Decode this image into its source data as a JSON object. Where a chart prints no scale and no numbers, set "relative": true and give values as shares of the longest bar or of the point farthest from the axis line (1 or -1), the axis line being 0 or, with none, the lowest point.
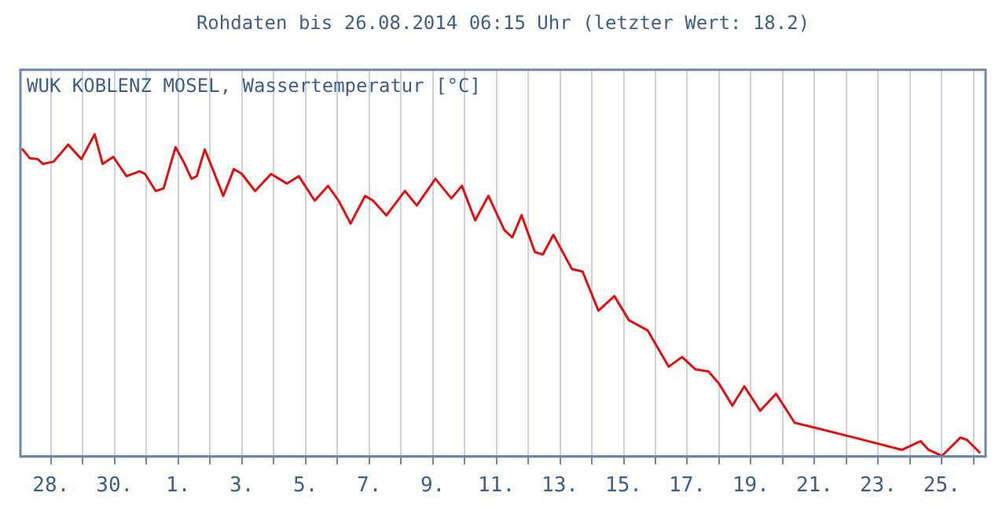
{
  "chart_data": {
    "type": "line",
    "title": "Rohdaten bis 26.08.2014 06:15 Uhr (letzter Wert: 18.2)",
    "subtitle": "WUK KOBLENZ MOSEL, Wassertemperatur [°C]",
    "relative": true,
    "grid": "x",
    "legend": false,
    "marker": "none",
    "line_style": "solid",
    "xlim": [
      "2014-07-27T01:00",
      "2014-08-26T09:00"
    ],
    "xticks": [
      {
        "value": "2014-07-28",
        "label": "28."
      },
      {
        "value": "2014-07-29",
        "label": null
      },
      {
        "value": "2014-07-30",
        "label": "30."
      },
      {
        "value": "2014-07-31",
        "label": null
      },
      {
        "value": "2014-08-01",
        "label": "1."
      },
      {
        "value": "2014-08-02",
        "label": null
      },
      {
        "value": "2014-08-03",
        "label": "3."
      },
      {
        "value": "2014-08-04",
        "label": null
      },
      {
        "value": "2014-08-05",
        "label": "5."
      },
      {
        "value": "2014-08-06",
        "label": null
      },
      {
        "value": "2014-08-07",
        "label": "7."
      },
      {
        "value": "2014-08-08",
        "label": null
      },
      {
        "value": "2014-08-09",
        "label": "9."
      },
      {
        "value": "2014-08-10",
        "label": null
      },
      {
        "value": "2014-08-11",
        "label": "11."
      },
      {
        "value": "2014-08-12",
        "label": null
      },
      {
        "value": "2014-08-13",
        "label": "13."
      },
      {
        "value": "2014-08-14",
        "label": null
      },
      {
        "value": "2014-08-15",
        "label": "15."
      },
      {
        "value": "2014-08-16",
        "label": null
      },
      {
        "value": "2014-08-17",
        "label": "17."
      },
      {
        "value": "2014-08-18",
        "label": null
      },
      {
        "value": "2014-08-19",
        "label": "19."
      },
      {
        "value": "2014-08-20",
        "label": null
      },
      {
        "value": "2014-08-21",
        "label": "21."
      },
      {
        "value": "2014-08-22",
        "label": null
      },
      {
        "value": "2014-08-23",
        "label": "23."
      },
      {
        "value": "2014-08-24",
        "label": null
      },
      {
        "value": "2014-08-25",
        "label": "25."
      },
      {
        "value": "2014-08-26",
        "label": null
      }
    ],
    "x": [
      "2014-07-27T02:00",
      "2014-07-27T08:00",
      "2014-07-27T14:00",
      "2014-07-27T18:00",
      "2014-07-28T02:00",
      "2014-07-28T13:00",
      "2014-07-28T23:00",
      "2014-07-29T09:00",
      "2014-07-29T15:00",
      "2014-07-29T23:00",
      "2014-07-30T09:00",
      "2014-07-30T19:00",
      "2014-07-30T23:00",
      "2014-07-31T07:00",
      "2014-07-31T13:00",
      "2014-07-31T22:00",
      "2014-08-01T04:00",
      "2014-08-01T10:00",
      "2014-08-01T14:00",
      "2014-08-01T20:00",
      "2014-08-02T02:00",
      "2014-08-02T10:00",
      "2014-08-02T18:00",
      "2014-08-03T00:00",
      "2014-08-03T10:00",
      "2014-08-03T22:00",
      "2014-08-04T04:00",
      "2014-08-04T10:00",
      "2014-08-04T19:00",
      "2014-08-05T07:00",
      "2014-08-05T17:00",
      "2014-08-06T01:00",
      "2014-08-06T10:00",
      "2014-08-06T21:00",
      "2014-08-07T03:00",
      "2014-08-07T13:00",
      "2014-08-08T03:00",
      "2014-08-08T12:00",
      "2014-08-09T02:00",
      "2014-08-09T14:00",
      "2014-08-09T22:00",
      "2014-08-10T08:00",
      "2014-08-10T18:00",
      "2014-08-11T06:00",
      "2014-08-11T12:00",
      "2014-08-11T19:00",
      "2014-08-12T05:00",
      "2014-08-12T11:00",
      "2014-08-12T19:00",
      "2014-08-13T09:00",
      "2014-08-13T17:00",
      "2014-08-14T05:00",
      "2014-08-14T17:00",
      "2014-08-15T04:00",
      "2014-08-15T18:00",
      "2014-08-16T10:00",
      "2014-08-16T20:00",
      "2014-08-17T06:00",
      "2014-08-17T16:00",
      "2014-08-18T00:00",
      "2014-08-18T10:00",
      "2014-08-18T19:00",
      "2014-08-19T07:00",
      "2014-08-19T19:00",
      "2014-08-20T09:00",
      "2014-08-20T23:00",
      "2014-08-22T06:00",
      "2014-08-23T18:00",
      "2014-08-24T08:00",
      "2014-08-24T14:00",
      "2014-08-25T00:00",
      "2014-08-25T14:00",
      "2014-08-25T19:00",
      "2014-08-26T05:00"
    ],
    "series": [
      {
        "color": "#e01010",
        "values": [
          0.956,
          0.926,
          0.923,
          0.908,
          0.915,
          0.968,
          0.923,
          1,
          0.908,
          0.93,
          0.87,
          0.885,
          0.877,
          0.824,
          0.832,
          0.96,
          0.915,
          0.862,
          0.87,
          0.953,
          0.892,
          0.809,
          0.892,
          0.877,
          0.824,
          0.877,
          0.862,
          0.847,
          0.87,
          0.794,
          0.84,
          0.794,
          0.723,
          0.809,
          0.794,
          0.748,
          0.824,
          0.779,
          0.862,
          0.801,
          0.84,
          0.733,
          0.809,
          0.703,
          0.68,
          0.749,
          0.635,
          0.627,
          0.688,
          0.582,
          0.574,
          0.453,
          0.498,
          0.423,
          0.392,
          0.279,
          0.309,
          0.271,
          0.264,
          0.226,
          0.158,
          0.218,
          0.142,
          0.195,
          0.105,
          0.091,
          0.059,
          0.021,
          0.048,
          0.021,
          0.002,
          0.059,
          0.052,
          0.011
        ]
      }
    ]
  }
}
